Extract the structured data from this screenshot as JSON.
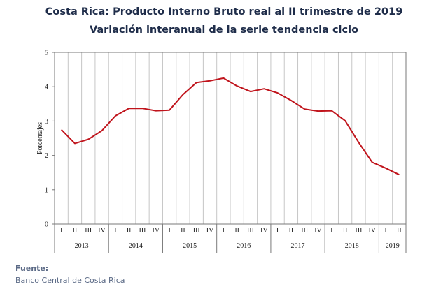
{
  "header": {
    "title": "Costa Rica: Producto Interno Bruto real al II trimestre de 2019",
    "subtitle": "Variación interanual de la serie tendencia ciclo"
  },
  "footer": {
    "source_label": "Fuente:",
    "source_text": "Banco Central de Costa Rica"
  },
  "colors": {
    "line": "#c0141c",
    "grid": "#c6c6c6",
    "axis": "#7a7a7a",
    "text": "#1a1a1a"
  },
  "chart_data": {
    "type": "line",
    "title": "Costa Rica: Producto Interno Bruto real al II trimestre de 2019",
    "subtitle": "Variación interanual de la serie tendencia ciclo",
    "xlabel": "",
    "ylabel": "Porcentajes",
    "ylim": [
      0,
      5
    ],
    "yticks": [
      "0",
      "1",
      "2",
      "3",
      "4",
      "5"
    ],
    "grid": "vertical",
    "legend": "none",
    "categories": [
      "I",
      "II",
      "III",
      "IV",
      "I",
      "II",
      "III",
      "IV",
      "I",
      "II",
      "III",
      "IV",
      "I",
      "II",
      "III",
      "IV",
      "I",
      "II",
      "III",
      "IV",
      "I",
      "II",
      "III",
      "IV",
      "I",
      "II"
    ],
    "years": [
      {
        "label": "2013",
        "quarters": 4
      },
      {
        "label": "2014",
        "quarters": 4
      },
      {
        "label": "2015",
        "quarters": 4
      },
      {
        "label": "2016",
        "quarters": 4
      },
      {
        "label": "2017",
        "quarters": 4
      },
      {
        "label": "2018",
        "quarters": 4
      },
      {
        "label": "2019",
        "quarters": 2
      }
    ],
    "series": [
      {
        "values": [
          2.75,
          2.35,
          2.47,
          2.72,
          3.15,
          3.37,
          3.37,
          3.3,
          3.32,
          3.77,
          4.12,
          4.17,
          4.25,
          4.02,
          3.86,
          3.94,
          3.82,
          3.6,
          3.35,
          3.29,
          3.3,
          3.01,
          2.38,
          1.8,
          1.63,
          1.44
        ]
      }
    ]
  }
}
